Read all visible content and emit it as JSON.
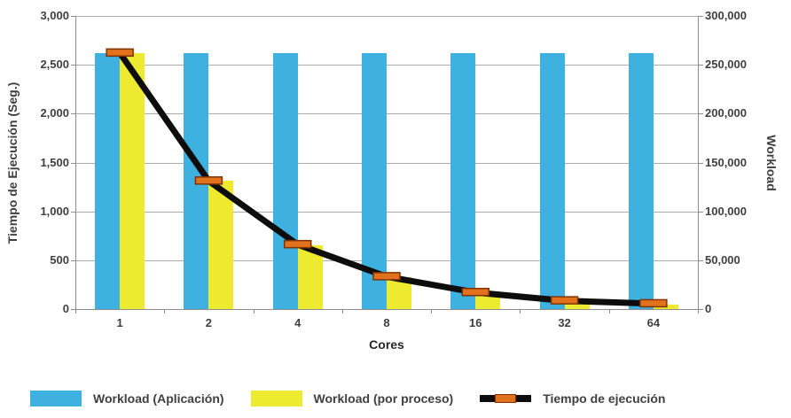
{
  "chart_data": {
    "type": "bar",
    "subtype": "combo-bar-line-dual-axis",
    "title": "",
    "categories": [
      "1",
      "2",
      "4",
      "8",
      "16",
      "32",
      "64"
    ],
    "xlabel": "Cores",
    "grid": true,
    "legend_position": "bottom",
    "left_axis": {
      "label": "Tiempo de Ejecución (Seg.)",
      "min": 0,
      "max": 3000,
      "ticks": [
        "3,000",
        "2,500",
        "2,000",
        "1,500",
        "1,000",
        "500",
        "0"
      ]
    },
    "right_axis": {
      "label": "Workload",
      "min": 0,
      "max": 300000,
      "ticks": [
        "300,000",
        "250,000",
        "200,000",
        "150,000",
        "100,000",
        "50,000",
        "0"
      ]
    },
    "series": [
      {
        "name": "Workload (Aplicación)",
        "type": "bar",
        "axis": "right",
        "color": "#3FB1E1",
        "values": [
          262144,
          262144,
          262144,
          262144,
          262144,
          262144,
          262144
        ]
      },
      {
        "name": "Workload (por proceso)",
        "type": "bar",
        "axis": "right",
        "color": "#EDEA2F",
        "values": [
          262144,
          131072,
          65536,
          32768,
          16384,
          8192,
          4096
        ]
      },
      {
        "name": "Tiempo de ejecución",
        "type": "line",
        "axis": "left",
        "color": "#0D0D0D",
        "marker_color": "#E2711D",
        "marker_border_color": "#7F3300",
        "values": [
          2621,
          1311,
          660,
          332,
          170,
          85,
          55
        ]
      }
    ],
    "colors": {
      "gridline": "#ABABAB",
      "axis_line": "#8C8C8C",
      "text": "#3F3F3F",
      "background": "#FFFFFF"
    }
  }
}
